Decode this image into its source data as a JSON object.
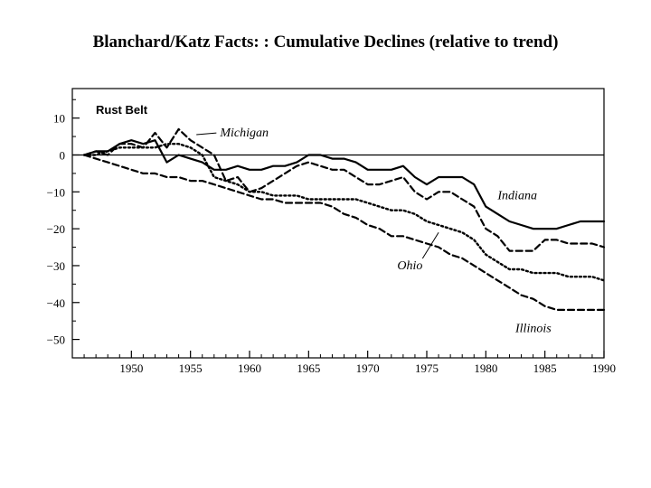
{
  "slide": {
    "title": "Blanchard/Katz Facts: :  Cumulative Declines (relative to trend)"
  },
  "chart_data": {
    "type": "line",
    "title": "Blanchard/Katz Facts: :  Cumulative Declines (relative to trend)",
    "panel_label": "Rust Belt",
    "xlabel": "",
    "ylabel": "",
    "xlim": [
      1945,
      1990
    ],
    "ylim": [
      -55,
      18
    ],
    "x_ticks": [
      1950,
      1955,
      1960,
      1965,
      1970,
      1975,
      1980,
      1985,
      1990
    ],
    "y_ticks": [
      10,
      0,
      -10,
      -20,
      -30,
      -40,
      -50
    ],
    "y_tick_labels": [
      "10",
      "0",
      "−10",
      "−20",
      "−30",
      "−40",
      "−50"
    ],
    "zero_line": true,
    "grid": false,
    "legend": "inline labels",
    "series": [
      {
        "name": "Michigan",
        "style": "dashed",
        "label_x": 1957.5,
        "label_y": 5,
        "leader_to": [
          1955.5,
          5.5
        ],
        "x": [
          1946,
          1947,
          1948,
          1949,
          1950,
          1951,
          1952,
          1953,
          1954,
          1955,
          1956,
          1957,
          1958,
          1959,
          1960,
          1961,
          1962,
          1963,
          1964,
          1965,
          1966,
          1967,
          1968,
          1969,
          1970,
          1971,
          1972,
          1973,
          1974,
          1975,
          1976,
          1977,
          1978,
          1979,
          1980,
          1981,
          1982,
          1983,
          1984,
          1985,
          1986,
          1987,
          1988,
          1989,
          1990
        ],
        "values": [
          0,
          1,
          0,
          3,
          3,
          2,
          6,
          2,
          7,
          4,
          2,
          0,
          -7,
          -6,
          -10,
          -9,
          -7,
          -5,
          -3,
          -2,
          -3,
          -4,
          -4,
          -6,
          -8,
          -8,
          -7,
          -6,
          -10,
          -12,
          -10,
          -10,
          -12,
          -14,
          -20,
          -22,
          -26,
          -26,
          -26,
          -23,
          -23,
          -24,
          -24,
          -24,
          -25
        ]
      },
      {
        "name": "Indiana",
        "style": "solid",
        "label_x": 1981,
        "label_y": -12,
        "x": [
          1946,
          1947,
          1948,
          1949,
          1950,
          1951,
          1952,
          1953,
          1954,
          1955,
          1956,
          1957,
          1958,
          1959,
          1960,
          1961,
          1962,
          1963,
          1964,
          1965,
          1966,
          1967,
          1968,
          1969,
          1970,
          1971,
          1972,
          1973,
          1974,
          1975,
          1976,
          1977,
          1978,
          1979,
          1980,
          1981,
          1982,
          1983,
          1984,
          1985,
          1986,
          1987,
          1988,
          1989,
          1990
        ],
        "values": [
          0,
          1,
          1,
          3,
          4,
          3,
          4,
          -2,
          0,
          -1,
          -2,
          -4,
          -4,
          -3,
          -4,
          -4,
          -3,
          -3,
          -2,
          0,
          0,
          -1,
          -1,
          -2,
          -4,
          -4,
          -4,
          -3,
          -6,
          -8,
          -6,
          -6,
          -6,
          -8,
          -14,
          -16,
          -18,
          -19,
          -20,
          -20,
          -20,
          -19,
          -18,
          -18,
          -18
        ]
      },
      {
        "name": "Ohio",
        "style": "dotted",
        "label_x": 1972.5,
        "label_y": -31,
        "leader_to": [
          1976,
          -21
        ],
        "x": [
          1946,
          1947,
          1948,
          1949,
          1950,
          1951,
          1952,
          1953,
          1954,
          1955,
          1956,
          1957,
          1958,
          1959,
          1960,
          1961,
          1962,
          1963,
          1964,
          1965,
          1966,
          1967,
          1968,
          1969,
          1970,
          1971,
          1972,
          1973,
          1974,
          1975,
          1976,
          1977,
          1978,
          1979,
          1980,
          1981,
          1982,
          1983,
          1984,
          1985,
          1986,
          1987,
          1988,
          1989,
          1990
        ],
        "values": [
          0,
          0,
          1,
          2,
          2,
          2,
          2,
          3,
          3,
          2,
          0,
          -6,
          -7,
          -8,
          -10,
          -10,
          -11,
          -11,
          -11,
          -12,
          -12,
          -12,
          -12,
          -12,
          -13,
          -14,
          -15,
          -15,
          -16,
          -18,
          -19,
          -20,
          -21,
          -23,
          -27,
          -29,
          -31,
          -31,
          -32,
          -32,
          -32,
          -33,
          -33,
          -33,
          -34
        ]
      },
      {
        "name": "Illinois",
        "style": "dashed",
        "label_x": 1982.5,
        "label_y": -48,
        "x": [
          1946,
          1947,
          1948,
          1949,
          1950,
          1951,
          1952,
          1953,
          1954,
          1955,
          1956,
          1957,
          1958,
          1959,
          1960,
          1961,
          1962,
          1963,
          1964,
          1965,
          1966,
          1967,
          1968,
          1969,
          1970,
          1971,
          1972,
          1973,
          1974,
          1975,
          1976,
          1977,
          1978,
          1979,
          1980,
          1981,
          1982,
          1983,
          1984,
          1985,
          1986,
          1987,
          1988,
          1989,
          1990
        ],
        "values": [
          0,
          -1,
          -2,
          -3,
          -4,
          -5,
          -5,
          -6,
          -6,
          -7,
          -7,
          -8,
          -9,
          -10,
          -11,
          -12,
          -12,
          -13,
          -13,
          -13,
          -13,
          -14,
          -16,
          -17,
          -19,
          -20,
          -22,
          -22,
          -23,
          -24,
          -25,
          -27,
          -28,
          -30,
          -32,
          -34,
          -36,
          -38,
          -39,
          -41,
          -42,
          -42,
          -42,
          -42,
          -42
        ]
      }
    ]
  }
}
